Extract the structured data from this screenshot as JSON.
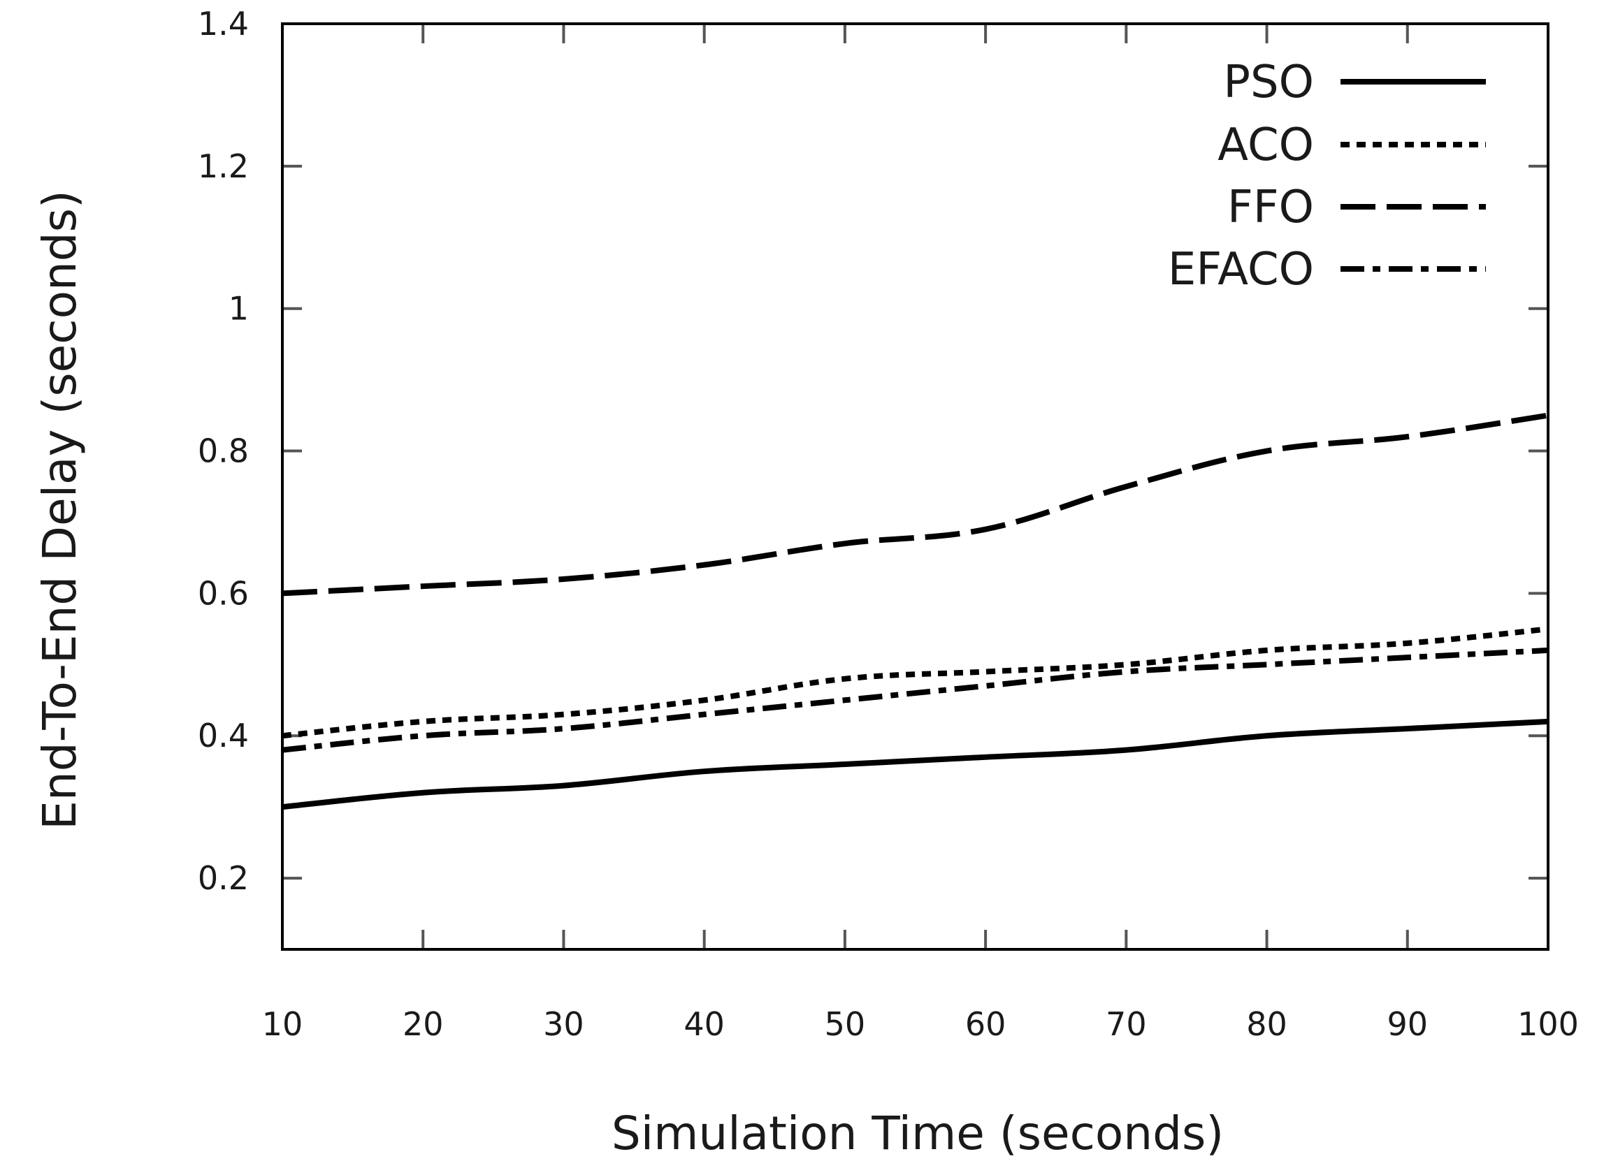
{
  "chart_data": {
    "type": "line",
    "title": "",
    "xlabel": "Simulation Time (seconds)",
    "ylabel": "End-To-End Delay (seconds)",
    "x": [
      10,
      20,
      30,
      40,
      50,
      60,
      70,
      80,
      90,
      100
    ],
    "xticks": [
      "10",
      "20",
      "30",
      "40",
      "50",
      "60",
      "70",
      "80",
      "90",
      "100"
    ],
    "yticks": [
      "0.2",
      "0.4",
      "0.6",
      "0.8",
      "1",
      "1.2",
      "1.4"
    ],
    "ytick_values": [
      0.2,
      0.4,
      0.6,
      0.8,
      1.0,
      1.2,
      1.4
    ],
    "xlim": [
      10,
      100
    ],
    "ylim": [
      0.1,
      1.4
    ],
    "grid": false,
    "legend_position": "top-right",
    "series": [
      {
        "name": "PSO",
        "style": "solid",
        "values": [
          0.3,
          0.32,
          0.33,
          0.35,
          0.36,
          0.37,
          0.38,
          0.4,
          0.41,
          0.42
        ]
      },
      {
        "name": "ACO",
        "style": "dotted",
        "values": [
          0.4,
          0.42,
          0.43,
          0.45,
          0.48,
          0.49,
          0.5,
          0.52,
          0.53,
          0.55
        ]
      },
      {
        "name": "FFO",
        "style": "dashed",
        "values": [
          0.6,
          0.61,
          0.62,
          0.64,
          0.67,
          0.69,
          0.75,
          0.8,
          0.82,
          0.85
        ]
      },
      {
        "name": "EFACO",
        "style": "dash-dot",
        "values": [
          0.38,
          0.4,
          0.41,
          0.43,
          0.45,
          0.47,
          0.49,
          0.5,
          0.51,
          0.52
        ]
      }
    ],
    "colors": {
      "line": "#000000",
      "axis": "#000000",
      "tick": "#555555",
      "text": "#1a1a1a"
    }
  }
}
